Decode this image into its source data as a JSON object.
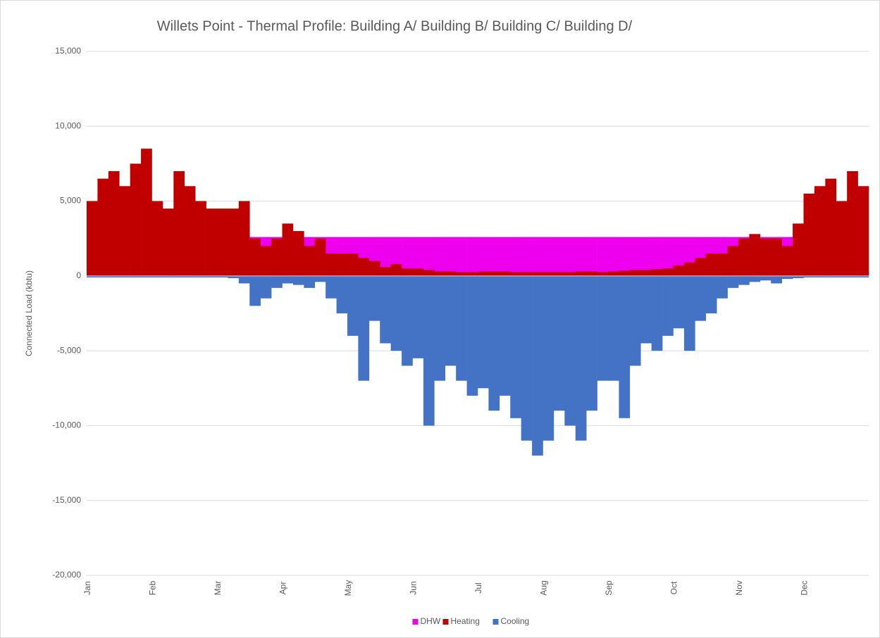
{
  "chart_data": {
    "type": "bar",
    "title": "Willets Point - Thermal Profile: Building A/ Building B/ Building C/ Building D/",
    "y_label": "Connected Load (kbtu)",
    "overlap": true,
    "grid": true,
    "legend": "bottom",
    "categories": [
      "Jan",
      null,
      null,
      null,
      null,
      null,
      "Feb",
      null,
      null,
      null,
      null,
      null,
      "Mar",
      null,
      null,
      null,
      null,
      null,
      "Apr",
      null,
      null,
      null,
      null,
      null,
      "May",
      null,
      null,
      null,
      null,
      null,
      "Jun",
      null,
      null,
      null,
      null,
      null,
      "Jul",
      null,
      null,
      null,
      null,
      null,
      "Aug",
      null,
      null,
      null,
      null,
      null,
      "Sep",
      null,
      null,
      null,
      null,
      null,
      "Oct",
      null,
      null,
      null,
      null,
      null,
      "Nov",
      null,
      null,
      null,
      null,
      null,
      "Dec",
      null,
      null,
      null,
      null,
      null
    ],
    "ylim": [
      -20000,
      15000
    ],
    "yticks": [
      {
        "value": -20000,
        "label": "-20,000"
      },
      {
        "value": -15000,
        "label": "-15,000"
      },
      {
        "value": -10000,
        "label": "-10,000"
      },
      {
        "value": -5000,
        "label": "-5,000"
      },
      0,
      {
        "value": 5000,
        "label": "5,000"
      },
      {
        "value": 10000,
        "label": "10,000"
      },
      {
        "value": 15000,
        "label": "15,000"
      }
    ],
    "series": [
      {
        "name": "DHW",
        "color": "#ee00ee",
        "values": [
          null,
          null,
          null,
          null,
          null,
          null,
          null,
          null,
          null,
          null,
          null,
          null,
          null,
          null,
          null,
          2600,
          2600,
          2600,
          2600,
          2600,
          2600,
          2600,
          2600,
          2600,
          2600,
          2600,
          2600,
          2600,
          2600,
          2600,
          2600,
          2600,
          2600,
          2600,
          2600,
          2600,
          2600,
          2600,
          2600,
          2600,
          2600,
          2600,
          2600,
          2600,
          2600,
          2600,
          2600,
          2600,
          2600,
          2600,
          2600,
          2600,
          2600,
          2600,
          2600,
          2600,
          2600,
          2600,
          2600,
          2600,
          2600,
          2600,
          2600,
          2600,
          2600,
          null,
          null,
          null,
          null,
          null,
          null,
          null
        ]
      },
      {
        "name": "Heating",
        "color": "#c00000",
        "values": [
          5000,
          6500,
          7000,
          6000,
          7500,
          8500,
          5000,
          4500,
          7000,
          6000,
          5000,
          4500,
          4500,
          4500,
          5000,
          2500,
          2000,
          2500,
          3500,
          3000,
          2000,
          2500,
          1500,
          1500,
          1500,
          1200,
          1000,
          600,
          800,
          500,
          500,
          400,
          300,
          300,
          250,
          250,
          300,
          300,
          300,
          250,
          250,
          250,
          250,
          250,
          250,
          300,
          300,
          250,
          300,
          350,
          400,
          400,
          450,
          500,
          700,
          900,
          1200,
          1500,
          1500,
          2000,
          2500,
          2800,
          2500,
          2500,
          2000,
          3500,
          5500,
          6000,
          6500,
          5000,
          7000,
          6000
        ]
      },
      {
        "name": "Cooling",
        "color": "#4472c4",
        "values": [
          -100,
          -100,
          -100,
          -100,
          -100,
          -100,
          -100,
          -100,
          -100,
          -100,
          -100,
          -100,
          -100,
          -150,
          -500,
          -2000,
          -1500,
          -800,
          -500,
          -600,
          -800,
          -400,
          -1500,
          -2500,
          -4000,
          -7000,
          -3000,
          -4500,
          -5000,
          -6000,
          -5500,
          -10000,
          -7000,
          -6000,
          -7000,
          -8000,
          -7500,
          -9000,
          -8000,
          -9500,
          -11000,
          -12000,
          -11000,
          -9000,
          -10000,
          -11000,
          -9000,
          -7000,
          -7000,
          -9500,
          -6000,
          -4500,
          -5000,
          -4000,
          -3500,
          -5000,
          -3000,
          -2500,
          -1500,
          -800,
          -600,
          -400,
          -300,
          -500,
          -200,
          -150,
          -100,
          -100,
          -100,
          -100,
          -100,
          -100
        ]
      }
    ]
  }
}
